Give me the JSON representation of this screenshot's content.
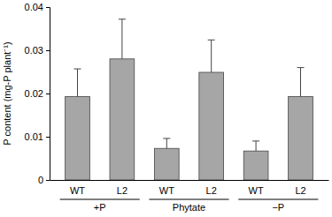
{
  "chart_data": {
    "type": "bar",
    "y_label": "P content (mg-P plant⁻¹)",
    "categories": [
      "WT",
      "L2",
      "WT",
      "L2",
      "WT",
      "L2"
    ],
    "groups": [
      "+P",
      "Phytate",
      "−P"
    ],
    "values": [
      0.0193,
      0.028,
      0.0073,
      0.0249,
      0.0067,
      0.0193
    ],
    "errors": [
      0.0064,
      0.0092,
      0.0023,
      0.0075,
      0.0023,
      0.0067
    ],
    "color": "#a6a6a6",
    "ylim": [
      0,
      0.04
    ],
    "yticks": [
      0,
      0.01,
      0.02,
      0.03,
      0.04
    ],
    "grid": false
  }
}
